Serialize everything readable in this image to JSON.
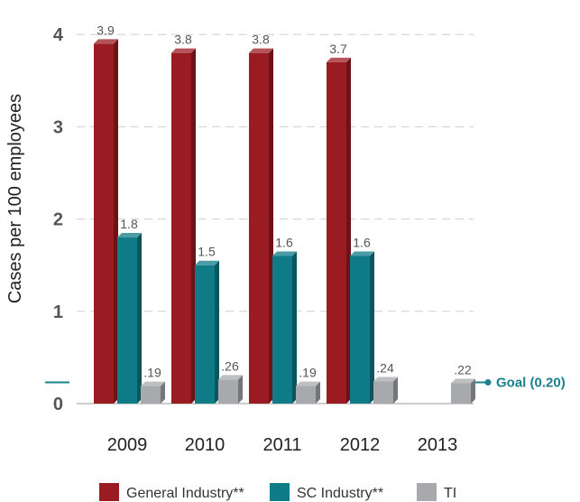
{
  "chart_data": {
    "type": "bar",
    "categories": [
      "2009",
      "2010",
      "2011",
      "2012",
      "2013"
    ],
    "series": [
      {
        "name": "General Industry**",
        "values": [
          3.9,
          3.8,
          3.8,
          3.7,
          null
        ],
        "labels": [
          "3.9",
          "3.8",
          "3.8",
          "3.7",
          ""
        ],
        "color": "#9b1b22"
      },
      {
        "name": "SC Industry**",
        "values": [
          1.8,
          1.5,
          1.6,
          1.6,
          null
        ],
        "labels": [
          "1.8",
          "1.5",
          "1.6",
          "1.6",
          ""
        ],
        "color": "#0f7b86"
      },
      {
        "name": "TI",
        "values": [
          0.19,
          0.26,
          0.19,
          0.24,
          0.22
        ],
        "labels": [
          ".19",
          ".26",
          ".19",
          ".24",
          ".22"
        ],
        "color": "#a7a9ac"
      }
    ],
    "ylabel": "Cases per 100 employees",
    "yticks": [
      "0",
      "1",
      "2",
      "3",
      "4"
    ],
    "ylim": [
      0,
      4.2
    ],
    "grid": true,
    "goal": {
      "label": "Goal (0.20)",
      "value": 0.2,
      "color": "#1b7f8e"
    },
    "legend_position": "bottom"
  }
}
